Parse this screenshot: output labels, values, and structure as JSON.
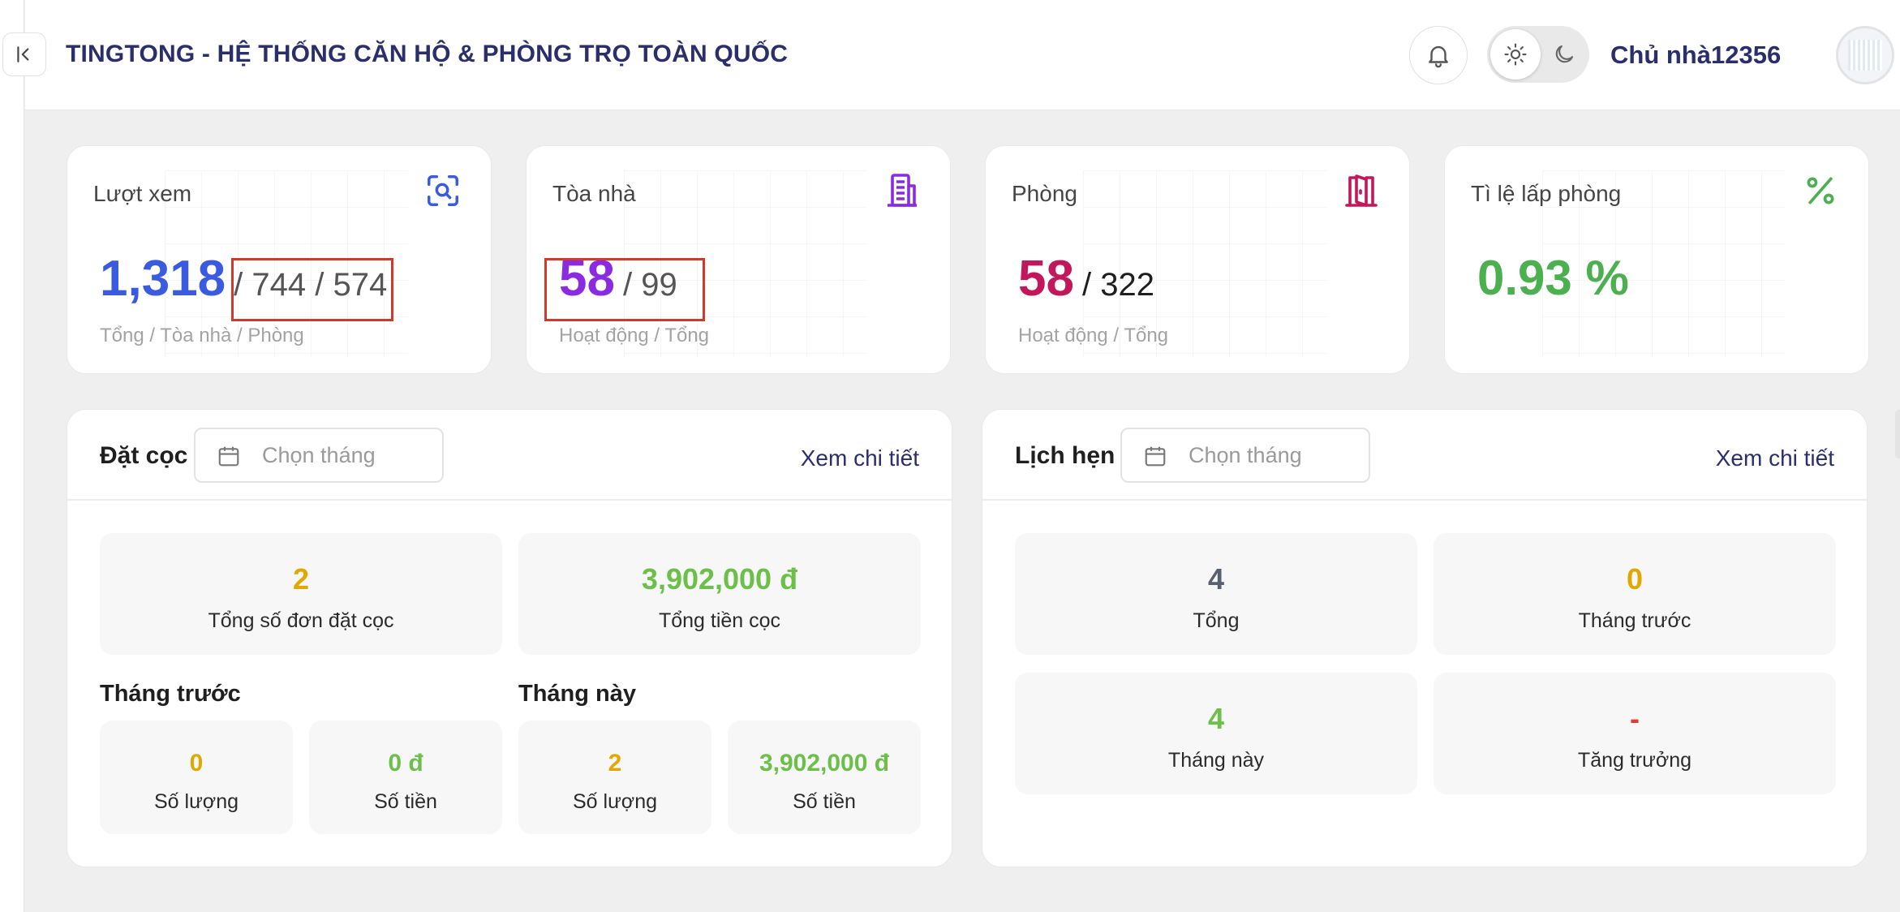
{
  "header": {
    "title": "TINGTONG - HỆ THỐNG CĂN HỘ & PHÒNG TRỌ TOÀN QUỐC",
    "user_name": "Chủ nhà12356",
    "icons": {
      "collapse": "collapse-left-icon",
      "bell": "bell-icon",
      "sun": "sun-icon",
      "moon": "moon-icon"
    }
  },
  "stats": [
    {
      "label": "Lượt xem",
      "value": "1,318",
      "rest": "/ 744 / 574",
      "sub": "Tổng / Tòa nhà / Phòng",
      "color": "#3a5be0",
      "icon": "search-view-icon"
    },
    {
      "label": "Tòa nhà",
      "value": "58",
      "rest": "/ 99",
      "sub": "Hoạt động / Tổng",
      "color": "#8a2be2",
      "icon": "building-icon"
    },
    {
      "label": "Phòng",
      "value": "58",
      "rest": "/ 322",
      "sub": "Hoạt động / Tổng",
      "color": "#c2185b",
      "icon": "door-icon"
    },
    {
      "label": "Tì lệ lấp phòng",
      "value": "0.93 %",
      "color": "#4caf50",
      "icon": "percent-icon"
    }
  ],
  "deposit": {
    "title": "Đặt cọc",
    "month_placeholder": "Chọn tháng",
    "detail_link": "Xem chi tiết",
    "total_orders": {
      "value": "2",
      "label": "Tổng số đơn đặt cọc"
    },
    "total_amount": {
      "value": "3,902,000 đ",
      "label": "Tổng tiền cọc"
    },
    "last_month": {
      "title": "Tháng trước",
      "count": {
        "value": "0",
        "label": "Số lượng"
      },
      "amount": {
        "value": "0 đ",
        "label": "Số tiền"
      }
    },
    "this_month": {
      "title": "Tháng này",
      "count": {
        "value": "2",
        "label": "Số lượng"
      },
      "amount": {
        "value": "3,902,000 đ",
        "label": "Số tiền"
      }
    }
  },
  "appointments": {
    "title": "Lịch hẹn",
    "month_placeholder": "Chọn tháng",
    "detail_link": "Xem chi tiết",
    "total": {
      "value": "4",
      "label": "Tổng"
    },
    "last_month": {
      "value": "0",
      "label": "Tháng trước"
    },
    "this_month": {
      "value": "4",
      "label": "Tháng này"
    },
    "growth": {
      "value": "-",
      "label": "Tăng trưởng"
    }
  },
  "colors": {
    "amber": "#e0a800",
    "green": "#6cc04a",
    "slate": "#5a6070",
    "red": "#e53935",
    "navy": "#2a2f6b"
  }
}
